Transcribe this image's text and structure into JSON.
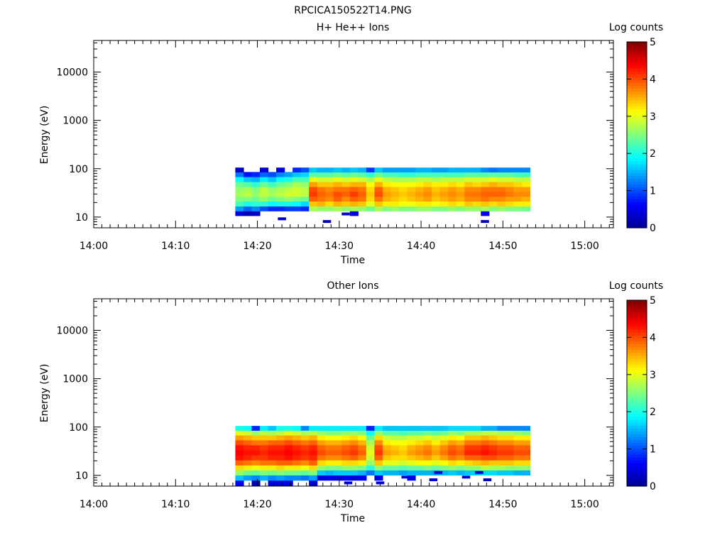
{
  "page": {
    "title": "RPCICA150522T14.PNG"
  },
  "colormap": {
    "stops": [
      "#00008F",
      "#0000FF",
      "#007FFF",
      "#00FFFF",
      "#7FFF7F",
      "#FFFF00",
      "#FF7F00",
      "#FF0000",
      "#7F0000"
    ]
  },
  "chart_data": [
    {
      "type": "heatmap",
      "title": "H+ He++ Ions",
      "xlabel": "Time",
      "ylabel": "Energy (eV)",
      "x_ticks": [
        "14:00",
        "14:10",
        "14:20",
        "14:30",
        "14:40",
        "14:50",
        "15:00"
      ],
      "x_range_minutes": [
        0,
        63.5
      ],
      "y_ticks": [
        10,
        100,
        1000,
        10000
      ],
      "y_tick_labels": [
        "10",
        "100",
        "1000",
        "10000"
      ],
      "y_scale": "log",
      "y_range": [
        6,
        45000
      ],
      "colorbar": {
        "label": "Log counts",
        "range": [
          0,
          5
        ],
        "ticks": [
          "0",
          "1",
          "2",
          "3",
          "4",
          "5"
        ]
      },
      "time_start_minutes": 17.3,
      "time_step_minutes": 1,
      "energy_bins": [
        12,
        15,
        19,
        24,
        30,
        38,
        48,
        61,
        77,
        95
      ],
      "columns": [
        [
          0.4,
          1.4,
          2.2,
          2.5,
          2.7,
          2.6,
          2.4,
          1.9,
          1.2,
          0.3
        ],
        [
          0.2,
          1.1,
          2.0,
          2.5,
          2.8,
          2.7,
          2.3,
          1.6,
          0.7,
          null
        ],
        [
          0.3,
          1.3,
          2.1,
          2.4,
          2.6,
          2.5,
          2.1,
          1.5,
          0.8,
          null
        ],
        [
          null,
          1.0,
          2.1,
          2.6,
          2.8,
          2.8,
          2.4,
          1.8,
          1.1,
          0.4
        ],
        [
          null,
          0.8,
          1.9,
          2.4,
          2.7,
          2.6,
          2.2,
          1.6,
          1.0,
          null
        ],
        [
          null,
          0.8,
          2.0,
          2.5,
          2.8,
          2.7,
          2.4,
          1.9,
          1.3,
          0.5
        ],
        [
          null,
          0.9,
          2.0,
          2.6,
          2.9,
          2.8,
          2.5,
          2.0,
          1.4,
          null
        ],
        [
          null,
          0.9,
          1.9,
          2.5,
          2.9,
          2.9,
          2.7,
          2.2,
          1.6,
          0.8
        ],
        [
          null,
          0.8,
          1.7,
          2.4,
          2.8,
          2.8,
          2.6,
          2.2,
          1.7,
          1.0
        ],
        [
          null,
          2.7,
          3.4,
          3.9,
          4.1,
          4.0,
          3.6,
          3.0,
          2.3,
          1.6
        ],
        [
          null,
          2.6,
          3.5,
          3.8,
          3.9,
          3.8,
          3.4,
          2.9,
          2.3,
          1.5
        ],
        [
          null,
          2.6,
          3.3,
          3.7,
          3.8,
          3.7,
          3.4,
          2.9,
          2.3,
          1.5
        ],
        [
          null,
          2.7,
          3.5,
          3.9,
          4.0,
          3.8,
          3.5,
          3.0,
          2.4,
          1.6
        ],
        [
          null,
          2.6,
          3.4,
          3.7,
          3.9,
          3.8,
          3.4,
          2.9,
          2.3,
          1.5
        ],
        [
          0.5,
          2.7,
          3.5,
          3.9,
          4.1,
          3.9,
          3.5,
          3.0,
          2.4,
          1.6
        ],
        [
          null,
          2.6,
          3.4,
          3.8,
          3.9,
          3.8,
          3.5,
          2.9,
          2.3,
          1.5
        ],
        [
          null,
          2.4,
          3.0,
          3.3,
          3.4,
          3.3,
          3.1,
          2.7,
          2.1,
          0.9
        ],
        [
          null,
          2.7,
          3.4,
          3.8,
          4.0,
          3.9,
          3.5,
          3.0,
          2.4,
          1.6
        ],
        [
          null,
          2.5,
          3.2,
          3.5,
          3.6,
          3.5,
          3.2,
          2.8,
          2.2,
          1.4
        ],
        [
          null,
          2.6,
          3.2,
          3.4,
          3.5,
          3.4,
          3.1,
          2.7,
          2.2,
          1.4
        ],
        [
          null,
          2.5,
          3.1,
          3.3,
          3.4,
          3.3,
          3.1,
          2.7,
          2.1,
          1.4
        ],
        [
          null,
          2.5,
          3.1,
          3.4,
          3.5,
          3.4,
          3.1,
          2.7,
          2.1,
          1.4
        ],
        [
          null,
          2.6,
          3.2,
          3.5,
          3.6,
          3.5,
          3.2,
          2.8,
          2.2,
          1.5
        ],
        [
          null,
          2.6,
          3.2,
          3.6,
          3.7,
          3.6,
          3.3,
          2.8,
          2.2,
          1.5
        ],
        [
          null,
          2.5,
          3.1,
          3.4,
          3.5,
          3.4,
          3.2,
          2.7,
          2.2,
          1.4
        ],
        [
          null,
          2.5,
          3.2,
          3.5,
          3.6,
          3.5,
          3.2,
          2.8,
          2.2,
          1.4
        ],
        [
          null,
          2.6,
          3.3,
          3.6,
          3.7,
          3.6,
          3.3,
          2.8,
          2.2,
          1.5
        ],
        [
          null,
          2.5,
          3.2,
          3.5,
          3.6,
          3.5,
          3.2,
          2.8,
          2.2,
          1.5
        ],
        [
          null,
          2.6,
          3.4,
          3.7,
          3.8,
          3.7,
          3.4,
          2.9,
          2.3,
          1.5
        ],
        [
          null,
          2.6,
          3.3,
          3.7,
          3.8,
          3.7,
          3.3,
          2.9,
          2.3,
          1.5
        ],
        [
          0.6,
          2.7,
          3.4,
          3.8,
          3.9,
          3.8,
          3.4,
          2.9,
          2.3,
          1.3
        ],
        [
          null,
          2.5,
          3.3,
          3.7,
          3.9,
          3.8,
          3.5,
          3.0,
          2.3,
          1.2
        ],
        [
          null,
          2.6,
          3.4,
          3.7,
          3.9,
          3.8,
          3.4,
          2.9,
          2.3,
          1.3
        ],
        [
          null,
          2.5,
          3.3,
          3.6,
          3.8,
          3.7,
          3.4,
          2.9,
          2.3,
          1.3
        ],
        [
          null,
          2.5,
          3.2,
          3.6,
          3.7,
          3.6,
          3.3,
          2.8,
          2.2,
          1.3
        ],
        [
          null,
          2.4,
          3.2,
          3.5,
          3.7,
          3.6,
          3.2,
          2.8,
          2.2,
          1.3
        ]
      ],
      "scatter_cells": [
        {
          "t": 22.5,
          "e": 9.2,
          "v": 0.3
        },
        {
          "t": 28.0,
          "e": 8.1,
          "v": 0.3
        },
        {
          "t": 30.3,
          "e": 11.6,
          "v": 0.4
        },
        {
          "t": 47.3,
          "e": 8.1,
          "v": 0.3
        }
      ]
    },
    {
      "type": "heatmap",
      "title": "Other Ions",
      "xlabel": "Time",
      "ylabel": "Energy (eV)",
      "x_ticks": [
        "14:00",
        "14:10",
        "14:20",
        "14:30",
        "14:40",
        "14:50",
        "15:00"
      ],
      "x_range_minutes": [
        0,
        63.5
      ],
      "y_ticks": [
        10,
        100,
        1000,
        10000
      ],
      "y_tick_labels": [
        "10",
        "100",
        "1000",
        "10000"
      ],
      "y_scale": "log",
      "y_range": [
        6,
        45000
      ],
      "colorbar": {
        "label": "Log counts",
        "range": [
          0,
          5
        ],
        "ticks": [
          "0",
          "1",
          "2",
          "3",
          "4",
          "5"
        ]
      },
      "time_start_minutes": 17.3,
      "time_step_minutes": 1,
      "energy_bins": [
        7,
        9,
        11.5,
        14.5,
        18.5,
        23.5,
        30,
        38,
        48,
        61,
        77,
        95
      ],
      "columns": [
        [
          0.6,
          1.6,
          2.6,
          3.3,
          3.9,
          4.3,
          4.4,
          4.3,
          4.0,
          3.6,
          3.0,
          2.0
        ],
        [
          null,
          1.4,
          2.4,
          3.2,
          3.8,
          4.2,
          4.3,
          4.2,
          3.9,
          3.5,
          2.9,
          1.9
        ],
        [
          0.3,
          1.3,
          2.3,
          3.1,
          3.7,
          4.1,
          4.3,
          4.2,
          3.8,
          3.4,
          2.6,
          0.8
        ],
        [
          null,
          1.5,
          2.5,
          3.2,
          3.8,
          4.1,
          4.2,
          4.1,
          3.8,
          3.4,
          2.8,
          1.8
        ],
        [
          0.4,
          1.3,
          2.4,
          3.2,
          3.8,
          4.2,
          4.3,
          4.2,
          3.9,
          3.4,
          2.7,
          1.6
        ],
        [
          0.4,
          1.4,
          2.5,
          3.3,
          3.9,
          4.2,
          4.3,
          4.2,
          3.9,
          3.5,
          2.8,
          2.0
        ],
        [
          0.5,
          1.3,
          2.4,
          3.2,
          3.9,
          4.3,
          4.4,
          4.3,
          4.0,
          3.6,
          3.0,
          2.0
        ],
        [
          null,
          1.3,
          2.4,
          3.2,
          3.8,
          4.2,
          4.3,
          4.2,
          3.9,
          3.5,
          2.9,
          1.9
        ],
        [
          null,
          1.2,
          2.3,
          3.1,
          3.7,
          4.1,
          4.2,
          4.1,
          3.8,
          3.4,
          2.7,
          1.3
        ],
        [
          0.4,
          1.4,
          2.5,
          3.3,
          3.9,
          4.2,
          4.3,
          4.2,
          3.9,
          3.5,
          2.8,
          1.8
        ],
        [
          null,
          0.4,
          1.6,
          2.6,
          3.3,
          3.8,
          4.0,
          3.9,
          3.6,
          3.2,
          2.6,
          1.8
        ],
        [
          null,
          0.5,
          1.5,
          2.5,
          3.2,
          3.7,
          3.9,
          3.8,
          3.5,
          3.1,
          2.5,
          1.8
        ],
        [
          null,
          0.4,
          1.6,
          2.5,
          3.2,
          3.7,
          3.9,
          3.8,
          3.5,
          3.1,
          2.5,
          1.8
        ],
        [
          null,
          0.5,
          1.6,
          2.6,
          3.3,
          3.8,
          4.0,
          3.9,
          3.6,
          3.2,
          2.6,
          1.8
        ],
        [
          null,
          0.4,
          1.6,
          2.6,
          3.3,
          3.9,
          4.1,
          4.0,
          3.7,
          3.3,
          2.6,
          1.8
        ],
        [
          null,
          0.5,
          1.5,
          2.5,
          3.2,
          3.7,
          3.9,
          3.8,
          3.5,
          3.1,
          2.5,
          1.8
        ],
        [
          null,
          null,
          1.2,
          2.1,
          2.6,
          2.9,
          3.0,
          2.9,
          2.7,
          2.4,
          1.9,
          0.8
        ],
        [
          null,
          0.5,
          1.6,
          2.6,
          3.4,
          3.9,
          4.1,
          4.0,
          3.7,
          3.3,
          2.6,
          1.8
        ],
        [
          null,
          null,
          1.5,
          2.4,
          3.0,
          3.4,
          3.6,
          3.5,
          3.2,
          2.9,
          2.3,
          1.6
        ],
        [
          null,
          null,
          1.5,
          2.4,
          3.0,
          3.3,
          3.5,
          3.4,
          3.1,
          2.8,
          2.3,
          1.6
        ],
        [
          null,
          null,
          1.4,
          2.3,
          2.9,
          3.3,
          3.4,
          3.3,
          3.1,
          2.8,
          2.2,
          1.6
        ],
        [
          null,
          0.5,
          1.5,
          2.4,
          3.0,
          3.4,
          3.6,
          3.5,
          3.2,
          2.9,
          2.3,
          1.6
        ],
        [
          null,
          null,
          1.5,
          2.4,
          3.1,
          3.5,
          3.7,
          3.6,
          3.3,
          2.9,
          2.3,
          1.6
        ],
        [
          null,
          null,
          1.5,
          2.5,
          3.1,
          3.6,
          3.8,
          3.7,
          3.4,
          3.0,
          2.4,
          1.6
        ],
        [
          null,
          null,
          1.4,
          2.4,
          3.0,
          3.4,
          3.6,
          3.5,
          3.2,
          2.9,
          2.3,
          1.6
        ],
        [
          null,
          null,
          1.5,
          2.5,
          3.1,
          3.6,
          3.8,
          3.7,
          3.4,
          3.0,
          2.4,
          1.6
        ],
        [
          null,
          null,
          1.6,
          2.6,
          3.3,
          3.8,
          4.0,
          3.9,
          3.6,
          3.2,
          2.6,
          1.7
        ],
        [
          null,
          null,
          1.5,
          2.5,
          3.2,
          3.7,
          3.9,
          3.8,
          3.5,
          3.1,
          2.5,
          1.7
        ],
        [
          null,
          null,
          1.6,
          2.6,
          3.3,
          3.9,
          4.2,
          4.1,
          3.8,
          3.4,
          2.7,
          1.7
        ],
        [
          null,
          null,
          1.6,
          2.6,
          3.4,
          3.9,
          4.2,
          4.1,
          3.8,
          3.4,
          2.7,
          1.7
        ],
        [
          null,
          null,
          1.7,
          2.8,
          3.5,
          4.0,
          4.3,
          4.2,
          3.9,
          3.5,
          2.8,
          1.5
        ],
        [
          null,
          null,
          1.7,
          2.7,
          3.4,
          4.0,
          4.2,
          4.1,
          3.8,
          3.4,
          2.8,
          1.5
        ],
        [
          null,
          null,
          1.6,
          2.7,
          3.4,
          3.9,
          4.1,
          4.0,
          3.7,
          3.3,
          2.7,
          1.3
        ],
        [
          null,
          null,
          1.6,
          2.6,
          3.4,
          3.9,
          4.1,
          4.0,
          3.7,
          3.3,
          2.7,
          1.3
        ],
        [
          null,
          null,
          1.5,
          2.6,
          3.3,
          3.8,
          4.0,
          3.9,
          3.6,
          3.2,
          2.6,
          1.3
        ],
        [
          null,
          null,
          1.5,
          2.6,
          3.3,
          3.8,
          4.0,
          3.9,
          3.6,
          3.2,
          2.5,
          1.3
        ]
      ],
      "scatter_cells": [
        {
          "t": 30.6,
          "e": 7.0,
          "v": 0.4
        },
        {
          "t": 34.5,
          "e": 7.0,
          "v": 0.4
        },
        {
          "t": 37.6,
          "e": 9.2,
          "v": 0.4
        },
        {
          "t": 41.0,
          "e": 8.1,
          "v": 0.4
        },
        {
          "t": 45.0,
          "e": 9.2,
          "v": 0.4
        },
        {
          "t": 47.6,
          "e": 8.1,
          "v": 0.3
        },
        {
          "t": 41.6,
          "e": 11.5,
          "v": 0.4
        },
        {
          "t": 46.6,
          "e": 11.5,
          "v": 0.4
        }
      ]
    }
  ]
}
